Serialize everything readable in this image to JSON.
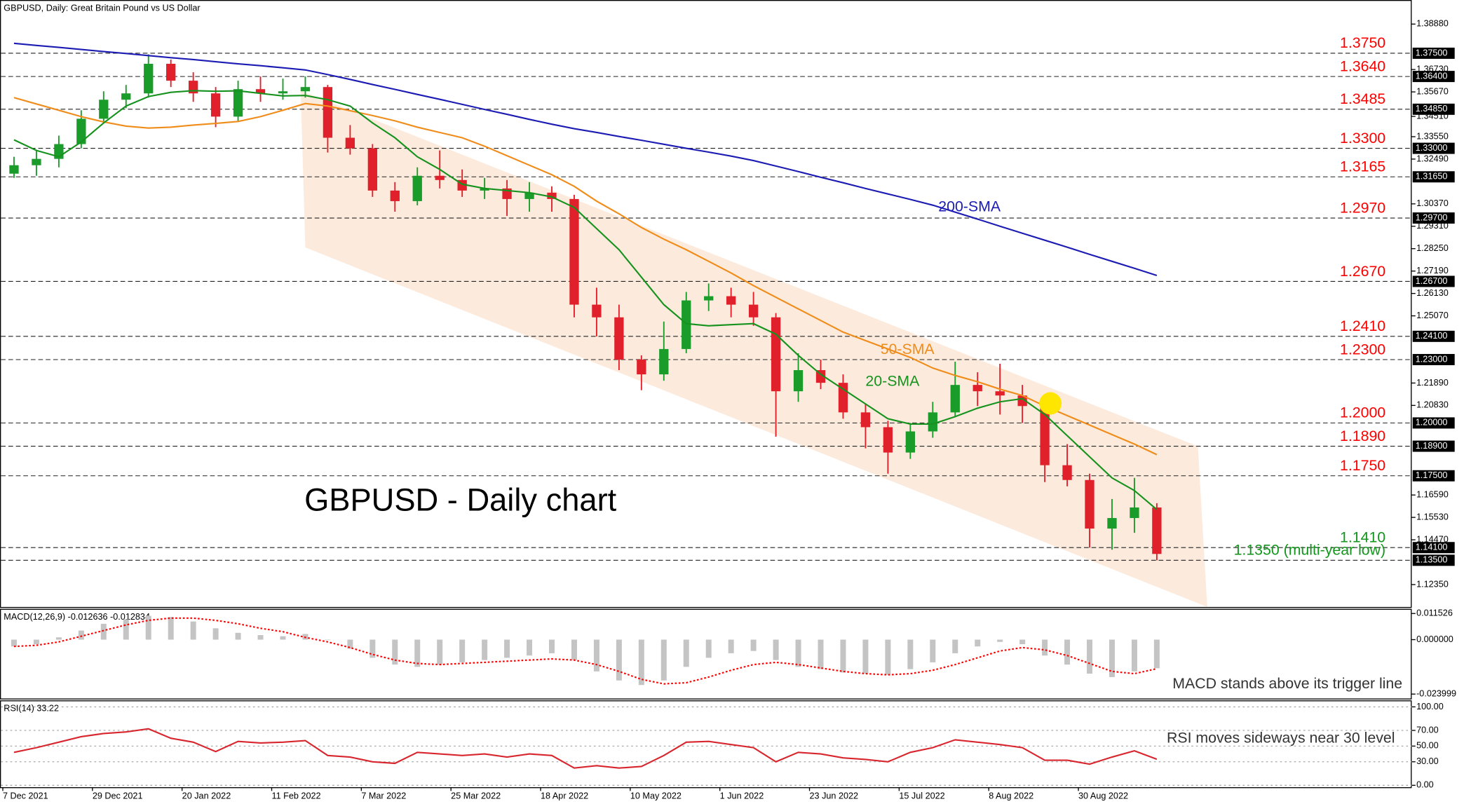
{
  "chart_data": [
    {
      "type": "candlestick",
      "title": "GBPUSD, Daily:  Great Britain Pound vs US Dollar",
      "annotation": "GBPUSD - Daily chart",
      "up_color": "#1a9c2a",
      "down_color": "#e0202a",
      "open": [
        1.318,
        1.322,
        1.325,
        1.332,
        1.344,
        1.353,
        1.356,
        1.37,
        1.362,
        1.356,
        1.345,
        1.358,
        1.356,
        1.357,
        1.359,
        1.335,
        1.33,
        1.31,
        1.305,
        1.317,
        1.315,
        1.31,
        1.311,
        1.306,
        1.309,
        1.306,
        1.256,
        1.25,
        1.23,
        1.223,
        1.235,
        1.258,
        1.26,
        1.256,
        1.25,
        1.215,
        1.225,
        1.219,
        1.205,
        1.198,
        1.186,
        1.196,
        1.205,
        1.218,
        1.215,
        1.213,
        1.208,
        1.18,
        1.173,
        1.15,
        1.155,
        1.16
      ],
      "high": [
        1.326,
        1.329,
        1.336,
        1.348,
        1.357,
        1.36,
        1.3745,
        1.372,
        1.366,
        1.359,
        1.362,
        1.364,
        1.363,
        1.364,
        1.36,
        1.341,
        1.332,
        1.314,
        1.321,
        1.329,
        1.32,
        1.316,
        1.315,
        1.314,
        1.312,
        1.308,
        1.264,
        1.256,
        1.232,
        1.248,
        1.262,
        1.266,
        1.264,
        1.262,
        1.252,
        1.233,
        1.23,
        1.223,
        1.209,
        1.201,
        1.2,
        1.21,
        1.229,
        1.224,
        1.228,
        1.218,
        1.209,
        1.19,
        1.176,
        1.164,
        1.174,
        1.162
      ],
      "low": [
        1.316,
        1.317,
        1.321,
        1.33,
        1.342,
        1.349,
        1.354,
        1.359,
        1.352,
        1.34,
        1.343,
        1.352,
        1.353,
        1.354,
        1.328,
        1.327,
        1.307,
        1.3,
        1.303,
        1.311,
        1.307,
        1.306,
        1.298,
        1.3,
        1.3,
        1.25,
        1.241,
        1.225,
        1.2155,
        1.22,
        1.233,
        1.253,
        1.25,
        1.246,
        1.1935,
        1.21,
        1.216,
        1.202,
        1.188,
        1.176,
        1.183,
        1.193,
        1.203,
        1.208,
        1.204,
        1.2,
        1.172,
        1.17,
        1.141,
        1.14,
        1.148,
        1.135
      ],
      "close": [
        1.322,
        1.325,
        1.332,
        1.344,
        1.353,
        1.356,
        1.37,
        1.362,
        1.356,
        1.345,
        1.358,
        1.356,
        1.357,
        1.359,
        1.335,
        1.33,
        1.31,
        1.305,
        1.317,
        1.315,
        1.31,
        1.311,
        1.306,
        1.309,
        1.306,
        1.256,
        1.25,
        1.23,
        1.223,
        1.235,
        1.258,
        1.26,
        1.256,
        1.25,
        1.215,
        1.225,
        1.219,
        1.205,
        1.198,
        1.186,
        1.196,
        1.205,
        1.218,
        1.215,
        1.213,
        1.208,
        1.18,
        1.173,
        1.15,
        1.155,
        1.16,
        1.138
      ],
      "series": [
        {
          "name": "200-SMA",
          "color": "#1c1cb4",
          "values": [
            1.3797,
            1.3787,
            1.3778,
            1.3768,
            1.3758,
            1.3749,
            1.3739,
            1.3729,
            1.372,
            1.371,
            1.37,
            1.3691,
            1.3681,
            1.3671,
            1.3649,
            1.3626,
            1.3602,
            1.3579,
            1.3555,
            1.3532,
            1.3508,
            1.3484,
            1.3461,
            1.3437,
            1.3414,
            1.3393,
            1.3375,
            1.3356,
            1.3338,
            1.3319,
            1.33,
            1.3282,
            1.3263,
            1.3242,
            1.3216,
            1.319,
            1.3163,
            1.3137,
            1.311,
            1.3084,
            1.3058,
            1.3031,
            1.2998,
            1.2965,
            1.2931,
            1.2898,
            1.2865,
            1.2832,
            1.2798,
            1.2765,
            1.2732,
            1.2698
          ]
        },
        {
          "name": "50-SMA",
          "color": "#f08c1a",
          "values": [
            1.354,
            1.351,
            1.348,
            1.345,
            1.3425,
            1.3405,
            1.3396,
            1.34,
            1.341,
            1.3418,
            1.3427,
            1.345,
            1.348,
            1.3512,
            1.35,
            1.3478,
            1.3455,
            1.343,
            1.34,
            1.3375,
            1.335,
            1.331,
            1.3265,
            1.322,
            1.3175,
            1.312,
            1.305,
            1.299,
            1.2925,
            1.287,
            1.282,
            1.2765,
            1.271,
            1.265,
            1.2595,
            1.254,
            1.2485,
            1.243,
            1.239,
            1.235,
            1.231,
            1.226,
            1.2225,
            1.2195,
            1.216,
            1.213,
            1.208,
            1.2035,
            1.199,
            1.1945,
            1.19,
            1.185
          ]
        },
        {
          "name": "20-SMA",
          "color": "#16921e",
          "values": [
            1.334,
            1.329,
            1.326,
            1.333,
            1.342,
            1.35,
            1.3545,
            1.3565,
            1.3573,
            1.357,
            1.3572,
            1.356,
            1.3548,
            1.355,
            1.353,
            1.35,
            1.342,
            1.335,
            1.326,
            1.32,
            1.313,
            1.311,
            1.31,
            1.309,
            1.307,
            1.302,
            1.292,
            1.282,
            1.269,
            1.256,
            1.247,
            1.246,
            1.2465,
            1.247,
            1.242,
            1.232,
            1.223,
            1.216,
            1.209,
            1.202,
            1.1995,
            1.1995,
            1.203,
            1.207,
            1.21,
            1.2115,
            1.204,
            1.194,
            1.184,
            1.174,
            1.168,
            1.159
          ]
        }
      ],
      "levels": [
        {
          "value": 1.375,
          "label": "1.3750",
          "axis_label": "1.37500",
          "color": "#ff0000"
        },
        {
          "value": 1.364,
          "label": "1.3640",
          "axis_label": "1.36400",
          "color": "#ff0000"
        },
        {
          "value": 1.3485,
          "label": "1.3485",
          "axis_label": "1.34850",
          "color": "#ff0000"
        },
        {
          "value": 1.33,
          "label": "1.3300",
          "axis_label": "1.33000",
          "color": "#ff0000"
        },
        {
          "value": 1.3165,
          "label": "1.3165",
          "axis_label": "1.31650",
          "color": "#ff0000"
        },
        {
          "value": 1.297,
          "label": "1.2970",
          "axis_label": "1.29700",
          "color": "#ff0000"
        },
        {
          "value": 1.267,
          "label": "1.2670",
          "axis_label": "1.26700",
          "color": "#ff0000"
        },
        {
          "value": 1.241,
          "label": "1.2410",
          "axis_label": "1.24100",
          "color": "#ff0000"
        },
        {
          "value": 1.23,
          "label": "1.2300",
          "axis_label": "1.23000",
          "color": "#ff0000"
        },
        {
          "value": 1.2,
          "label": "1.2000",
          "axis_label": "1.20000",
          "color": "#ff0000"
        },
        {
          "value": 1.189,
          "label": "1.1890",
          "axis_label": "1.18900",
          "color": "#ff0000"
        },
        {
          "value": 1.175,
          "label": "1.1750",
          "axis_label": "1.17500",
          "color": "#ff0000"
        },
        {
          "value": 1.141,
          "label": "1.1410",
          "axis_label": "1.14100",
          "color": "#14961e"
        },
        {
          "value": 1.135,
          "label": "1.1350 (multi-year low)",
          "axis_label": "1.13500",
          "color": "#14961e"
        }
      ],
      "ylim": [
        1.1129,
        1.4002
      ],
      "yticks": [
        {
          "value": 1.3888,
          "label": "1.38880"
        },
        {
          "value": 1.3673,
          "label": "1.36730"
        },
        {
          "value": 1.3567,
          "label": "1.35670"
        },
        {
          "value": 1.3451,
          "label": "1.34510"
        },
        {
          "value": 1.3355,
          "label": "1.33550"
        },
        {
          "value": 1.3249,
          "label": "1.32490"
        },
        {
          "value": 1.3037,
          "label": "1.30370"
        },
        {
          "value": 1.2931,
          "label": "1.29310"
        },
        {
          "value": 1.2825,
          "label": "1.28250"
        },
        {
          "value": 1.2719,
          "label": "1.27190"
        },
        {
          "value": 1.2613,
          "label": "1.26130"
        },
        {
          "value": 1.2507,
          "label": "1.25070"
        },
        {
          "value": 1.2189,
          "label": "1.21890"
        },
        {
          "value": 1.2083,
          "label": "1.20830"
        },
        {
          "value": 1.1659,
          "label": "1.16590"
        },
        {
          "value": 1.1553,
          "label": "1.15530"
        },
        {
          "value": 1.1447,
          "label": "1.14470"
        },
        {
          "value": 1.1235,
          "label": "1.12350"
        }
      ]
    },
    {
      "type": "bar",
      "title": "MACD(12,26,9) -0.012636 -0.012834",
      "note": "MACD stands above its trigger line",
      "color": "#c4c4c4",
      "values": [
        -0.003,
        -0.002,
        0.001,
        0.004,
        0.007,
        0.009,
        0.0105,
        0.01,
        0.008,
        0.005,
        0.003,
        0.002,
        0.0015,
        0.0025,
        0,
        -0.004,
        -0.008,
        -0.011,
        -0.012,
        -0.011,
        -0.01,
        -0.009,
        -0.008,
        -0.007,
        -0.006,
        -0.009,
        -0.014,
        -0.018,
        -0.02,
        -0.018,
        -0.012,
        -0.008,
        -0.006,
        -0.005,
        -0.009,
        -0.012,
        -0.013,
        -0.0145,
        -0.015,
        -0.0155,
        -0.013,
        -0.01,
        -0.006,
        -0.003,
        -0.001,
        -0.002,
        -0.007,
        -0.011,
        -0.015,
        -0.0165,
        -0.014,
        -0.0126
      ],
      "series": [
        {
          "color": "#ff0000",
          "style": "dotted",
          "values": [
            -0.003,
            -0.0025,
            -0.001,
            0.0015,
            0.004,
            0.0065,
            0.0085,
            0.0095,
            0.0095,
            0.0085,
            0.007,
            0.005,
            0.0035,
            0.001,
            -0.001,
            -0.0035,
            -0.0065,
            -0.009,
            -0.0105,
            -0.011,
            -0.0105,
            -0.01,
            -0.0095,
            -0.009,
            -0.0085,
            -0.009,
            -0.011,
            -0.014,
            -0.0175,
            -0.0195,
            -0.019,
            -0.0165,
            -0.0135,
            -0.011,
            -0.01,
            -0.011,
            -0.0125,
            -0.014,
            -0.015,
            -0.0155,
            -0.015,
            -0.0135,
            -0.011,
            -0.008,
            -0.005,
            -0.0035,
            -0.0045,
            -0.007,
            -0.0105,
            -0.014,
            -0.015,
            -0.0128
          ]
        }
      ],
      "ylim": [
        -0.02594,
        0.01358
      ],
      "yticks": [
        0.011526,
        {
          "value": 0,
          "label": "0.000000"
        },
        -0.023999
      ]
    },
    {
      "type": "line",
      "title": "RSI(14) 33.22",
      "note": "RSI moves sideways near 30 level",
      "categories": [
        "7 Dec 2021",
        null,
        null,
        null,
        "29 Dec 2021",
        null,
        null,
        null,
        "20 Jan 2022",
        null,
        null,
        null,
        "11 Feb 2022",
        null,
        null,
        null,
        "7 Mar 2022",
        null,
        null,
        null,
        "25 Mar 2022",
        null,
        null,
        null,
        "18 Apr 2022",
        null,
        null,
        null,
        "10 May 2022",
        null,
        null,
        null,
        "1 Jun 2022",
        null,
        null,
        null,
        "23 Jun 2022",
        null,
        null,
        null,
        "15 Jul 2022",
        null,
        null,
        null,
        "8 Aug 2022",
        null,
        null,
        null,
        "30 Aug 2022",
        null,
        null,
        null
      ],
      "series": [
        {
          "color": "#d8262e",
          "values": [
            42,
            48,
            55,
            62,
            66,
            68,
            72,
            60,
            55,
            43,
            56,
            54,
            55,
            57,
            38,
            36,
            30,
            28,
            42,
            40,
            38,
            40,
            36,
            40,
            38,
            22,
            25,
            22,
            24,
            38,
            55,
            56,
            52,
            48,
            30,
            42,
            40,
            35,
            33,
            30,
            42,
            48,
            58,
            55,
            52,
            48,
            32,
            32,
            27,
            36,
            44,
            33.22
          ]
        }
      ],
      "ylim": [
        -2.4,
        108.3
      ],
      "yticks": [
        {
          "value": 100,
          "label": "100.00"
        },
        {
          "value": 70,
          "label": "70.00"
        },
        {
          "value": 50,
          "label": "50.00"
        },
        {
          "value": 30,
          "label": "30.00"
        },
        {
          "value": 0,
          "label": "0.00"
        }
      ]
    }
  ]
}
